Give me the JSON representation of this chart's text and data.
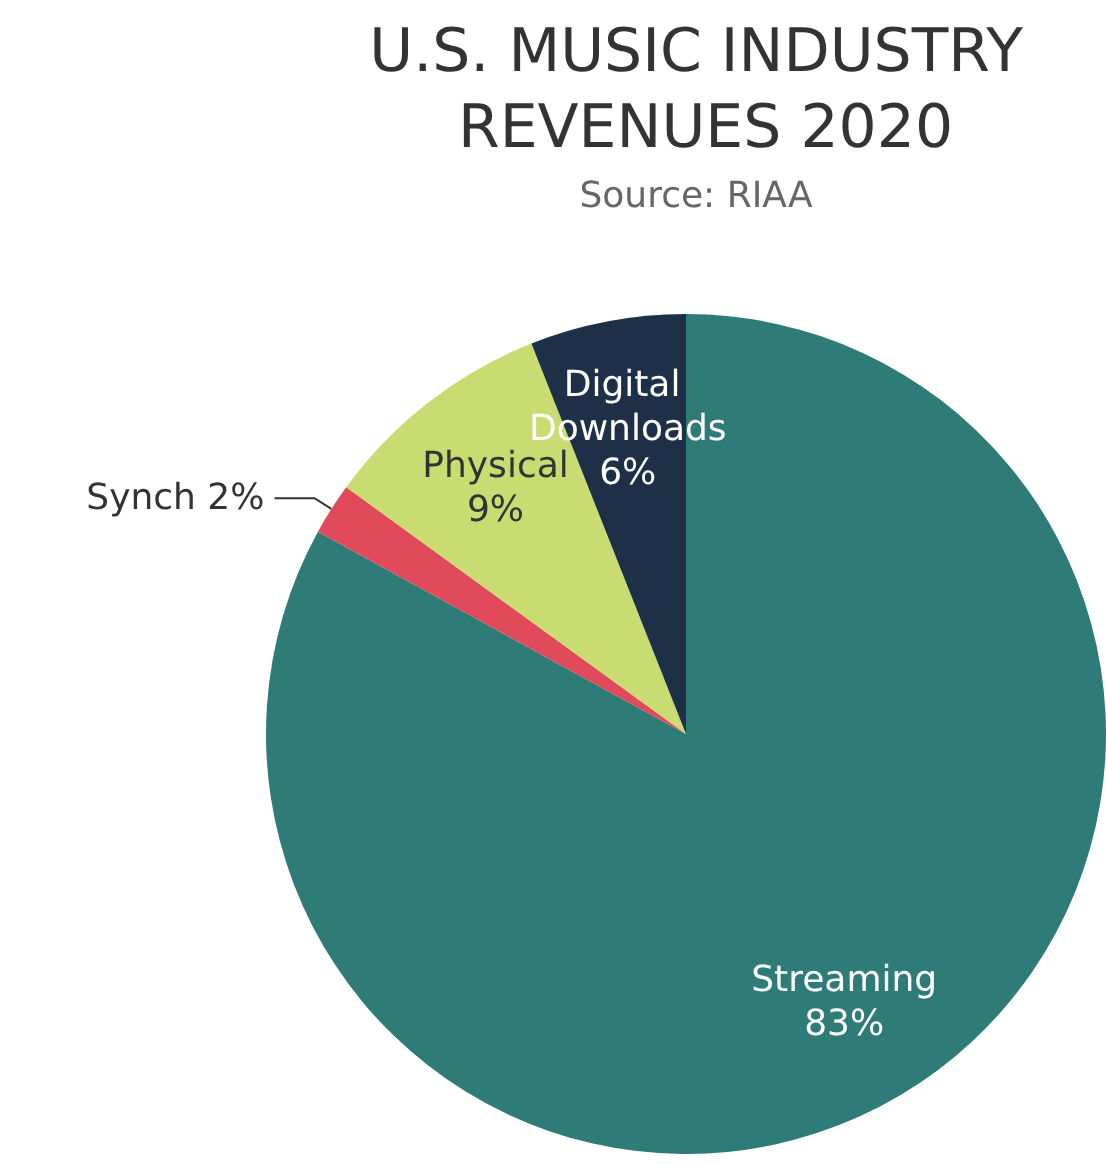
{
  "chart_data": {
    "type": "pie",
    "title": "U.S. MUSIC INDUSTRY REVENUES 2020",
    "subtitle": "Source: RIAA",
    "categories": [
      "Streaming",
      "Synch",
      "Physical",
      "Digital Downloads"
    ],
    "values": [
      83,
      2,
      9,
      6
    ],
    "colors": [
      "#2e7b78",
      "#e04a5a",
      "#c8dc72",
      "#1e3048"
    ],
    "value_labels": [
      "83%",
      "2%",
      "9%",
      "6%"
    ]
  }
}
